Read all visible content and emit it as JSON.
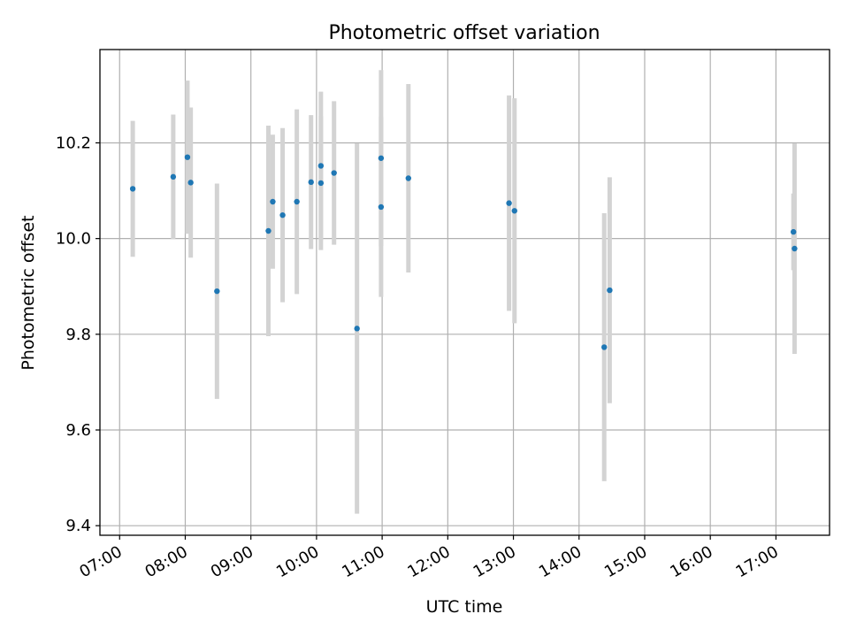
{
  "chart_data": {
    "type": "scatter",
    "title": "Photometric offset variation",
    "xlabel": "UTC time",
    "ylabel": "Photometric offset",
    "grid": true,
    "xlim": [
      "06:42",
      "17:49"
    ],
    "ylim": [
      9.38,
      10.395
    ],
    "x_ticks": [
      "07:00",
      "08:00",
      "09:00",
      "10:00",
      "11:00",
      "12:00",
      "13:00",
      "14:00",
      "15:00",
      "16:00",
      "17:00"
    ],
    "y_ticks": [
      9.4,
      9.6,
      9.8,
      10.0,
      10.2
    ],
    "y_tick_labels": [
      "9.4",
      "9.6",
      "9.8",
      "10.0",
      "10.2"
    ],
    "points": [
      {
        "x": "07:12",
        "y": 10.104,
        "err": 0.142
      },
      {
        "x": "07:49",
        "y": 10.129,
        "err": 0.13
      },
      {
        "x": "08:02",
        "y": 10.17,
        "err": 0.16
      },
      {
        "x": "08:05",
        "y": 10.117,
        "err": 0.157
      },
      {
        "x": "08:29",
        "y": 9.89,
        "err": 0.225
      },
      {
        "x": "09:16",
        "y": 10.016,
        "err": 0.22
      },
      {
        "x": "09:20",
        "y": 10.077,
        "err": 0.14
      },
      {
        "x": "09:29",
        "y": 10.049,
        "err": 0.182
      },
      {
        "x": "09:42",
        "y": 10.077,
        "err": 0.193
      },
      {
        "x": "09:55",
        "y": 10.118,
        "err": 0.14
      },
      {
        "x": "10:04",
        "y": 10.152,
        "err": 0.155
      },
      {
        "x": "10:04",
        "y": 10.116,
        "err": 0.14
      },
      {
        "x": "10:16",
        "y": 10.137,
        "err": 0.15
      },
      {
        "x": "10:37",
        "y": 9.812,
        "err": 0.387
      },
      {
        "x": "10:59",
        "y": 10.168,
        "err": 0.184
      },
      {
        "x": "10:59",
        "y": 10.066,
        "err": 0.188
      },
      {
        "x": "11:24",
        "y": 10.126,
        "err": 0.197
      },
      {
        "x": "12:56",
        "y": 10.074,
        "err": 0.225
      },
      {
        "x": "13:01",
        "y": 10.058,
        "err": 0.235
      },
      {
        "x": "14:23",
        "y": 9.773,
        "err": 0.28
      },
      {
        "x": "14:28",
        "y": 9.892,
        "err": 0.236
      },
      {
        "x": "17:16",
        "y": 10.014,
        "err": 0.08
      },
      {
        "x": "17:17",
        "y": 9.979,
        "err": 0.22
      }
    ],
    "colors": {
      "marker": "#1f77b4",
      "errorbar": "#d3d3d3",
      "grid": "#b0b0b0"
    }
  }
}
